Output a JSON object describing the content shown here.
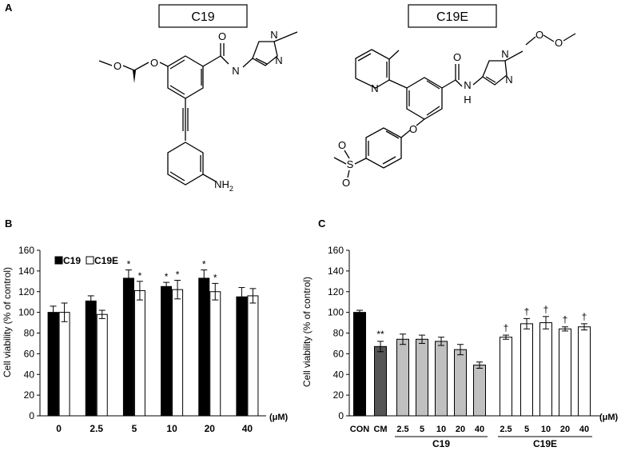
{
  "panels": {
    "a": "A",
    "b": "B",
    "c": "C"
  },
  "structures": [
    {
      "name": "C19",
      "labels": {
        "amide_n": "N",
        "amide_o": "O",
        "ether_o": "O",
        "methoxy_o": "O",
        "pyrazole_n1": "N",
        "pyrazole_n2": "N",
        "amine": "NH",
        "amine_sub": "2"
      }
    },
    {
      "name": "C19E",
      "labels": {
        "pyridine_n": "N",
        "amide_o": "O",
        "amide_n": "N",
        "amide_h": "H",
        "ether_o": "O",
        "sulfonyl_s": "S",
        "sulfonyl_o1": "O",
        "sulfonyl_o2": "O",
        "pyrazole_n1": "N",
        "pyrazole_n2": "N",
        "mom_o1": "O",
        "mom_o2": "O"
      }
    }
  ],
  "chart_data": [
    {
      "type": "bar",
      "panel": "B",
      "ylabel": "Cell viability (% of control)",
      "xlabel": "(μM)",
      "ylim": [
        0,
        160
      ],
      "yticks": [
        "0",
        "20",
        "40",
        "60",
        "80",
        "100",
        "120",
        "140",
        "160"
      ],
      "categories": [
        "0",
        "2.5",
        "5",
        "10",
        "20",
        "40"
      ],
      "legend_position": "top-left",
      "series": [
        {
          "name": "C19",
          "color": "#000000",
          "values": [
            100,
            111,
            133,
            125,
            133,
            115
          ],
          "errors": [
            6,
            5,
            8,
            4,
            8,
            9
          ],
          "annotations": [
            "",
            "",
            "*",
            "*",
            "*",
            ""
          ]
        },
        {
          "name": "C19E",
          "color": "#ffffff",
          "values": [
            100,
            98,
            121,
            122,
            120,
            116
          ],
          "errors": [
            9,
            4,
            9,
            9,
            8,
            7
          ],
          "annotations": [
            "",
            "",
            "*",
            "*",
            "*",
            ""
          ]
        }
      ]
    },
    {
      "type": "bar",
      "panel": "C",
      "ylabel": "Cell viability (% of control)",
      "xlabel": "(μM)",
      "ylim": [
        0,
        160
      ],
      "yticks": [
        "0",
        "20",
        "40",
        "60",
        "80",
        "100",
        "120",
        "140",
        "160"
      ],
      "categories": [
        "CON",
        "CM",
        "2.5",
        "5",
        "10",
        "20",
        "40",
        "2.5",
        "5",
        "10",
        "20",
        "40"
      ],
      "groups": [
        {
          "name": "C19",
          "from": 2,
          "to": 6
        },
        {
          "name": "C19E",
          "from": 7,
          "to": 11
        }
      ],
      "values": [
        100,
        67,
        74,
        74,
        72,
        64,
        49,
        76,
        89,
        90,
        84,
        86
      ],
      "errors": [
        2,
        5,
        5,
        4,
        4,
        5,
        3,
        2,
        5,
        6,
        2,
        3
      ],
      "colors": [
        "#000000",
        "#555555",
        "#c0c0c0",
        "#c0c0c0",
        "#c0c0c0",
        "#c0c0c0",
        "#c0c0c0",
        "#ffffff",
        "#ffffff",
        "#ffffff",
        "#ffffff",
        "#ffffff"
      ],
      "annotations": [
        "",
        "**",
        "",
        "",
        "",
        "",
        "",
        "†",
        "†",
        "†",
        "†",
        "†"
      ]
    }
  ]
}
